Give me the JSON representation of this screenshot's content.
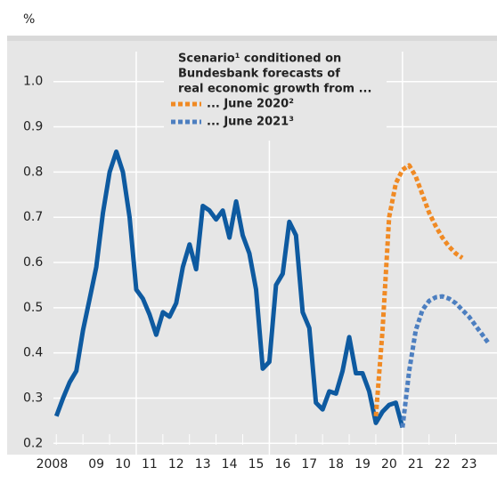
{
  "chart_data": {
    "type": "line",
    "unit_label": "%",
    "legend_title": [
      "Scenario¹ conditioned on",
      "Bundesbank forecasts of",
      "real economic growth from ..."
    ],
    "xlim": [
      2006.15,
      2024.55
    ],
    "ylim": [
      0.175,
      1.09
    ],
    "yticks": [
      0.2,
      0.3,
      0.4,
      0.5,
      0.6,
      0.7,
      0.8,
      0.9,
      {
        "value": 1.0,
        "label": "1.0"
      }
    ],
    "xticks": [
      {
        "value": 2008.5,
        "label": "2008"
      },
      {
        "value": 2009.5,
        "label": "09"
      },
      {
        "value": 2010.5,
        "label": "10"
      },
      {
        "value": 2011.5,
        "label": "11"
      },
      {
        "value": 2012.5,
        "label": "12"
      },
      {
        "value": 2013.5,
        "label": "13"
      },
      {
        "value": 2014.5,
        "label": "14"
      },
      {
        "value": 2015.5,
        "label": "15"
      },
      {
        "value": 2016.5,
        "label": "16"
      },
      {
        "value": 2017.5,
        "label": "17"
      },
      {
        "value": 2018.5,
        "label": "18"
      },
      {
        "value": 2019.5,
        "label": "19"
      },
      {
        "value": 2020.5,
        "label": "20"
      },
      {
        "value": 2021.5,
        "label": "21"
      },
      {
        "value": 2022.5,
        "label": "22"
      },
      {
        "value": 2023.5,
        "label": "23"
      }
    ],
    "xgrid": [
      2011,
      2016,
      2021
    ],
    "grid": true,
    "series": [
      {
        "color": "#0e5aa0",
        "dashed": false,
        "x": [
          2008,
          2008.25,
          2008.5,
          2008.75,
          2009,
          2009.25,
          2009.5,
          2009.75,
          2010,
          2010.25,
          2010.5,
          2010.75,
          2011,
          2011.25,
          2011.5,
          2011.75,
          2012,
          2012.25,
          2012.5,
          2012.75,
          2013,
          2013.25,
          2013.5,
          2013.75,
          2014,
          2014.25,
          2014.5,
          2014.75,
          2015,
          2015.25,
          2015.5,
          2015.75,
          2016,
          2016.25,
          2016.5,
          2016.75,
          2017,
          2017.25,
          2017.5,
          2017.75,
          2018,
          2018.25,
          2018.5,
          2018.75,
          2019,
          2019.25,
          2019.5,
          2019.75,
          2020,
          2020.25,
          2020.5,
          2020.75,
          2021
        ],
        "values": [
          0.26,
          0.3,
          0.335,
          0.36,
          0.45,
          0.52,
          0.59,
          0.71,
          0.8,
          0.845,
          0.8,
          0.7,
          0.54,
          0.52,
          0.485,
          0.44,
          0.49,
          0.48,
          0.51,
          0.59,
          0.64,
          0.585,
          0.725,
          0.715,
          0.695,
          0.715,
          0.655,
          0.735,
          0.66,
          0.62,
          0.54,
          0.365,
          0.38,
          0.55,
          0.575,
          0.69,
          0.66,
          0.49,
          0.455,
          0.29,
          0.275,
          0.315,
          0.31,
          0.36,
          0.435,
          0.355,
          0.355,
          0.315,
          0.245,
          0.27,
          0.285,
          0.29,
          0.235
        ]
      },
      {
        "name": "... June 2020²",
        "color": "#f08a24",
        "dashed": true,
        "x": [
          2020,
          2020.25,
          2020.5,
          2020.75,
          2021,
          2021.25,
          2021.5,
          2021.75,
          2022,
          2022.25,
          2022.5,
          2022.75,
          2023,
          2023.25
        ],
        "values": [
          0.26,
          0.45,
          0.7,
          0.775,
          0.805,
          0.815,
          0.79,
          0.75,
          0.71,
          0.68,
          0.655,
          0.635,
          0.62,
          0.61
        ]
      },
      {
        "name": "... June 2021³",
        "color": "#4d7fc0",
        "dashed": true,
        "x": [
          2021,
          2021.25,
          2021.5,
          2021.75,
          2022,
          2022.25,
          2022.5,
          2022.75,
          2023,
          2023.25,
          2023.5,
          2023.75,
          2024,
          2024.25
        ],
        "values": [
          0.235,
          0.36,
          0.45,
          0.495,
          0.515,
          0.523,
          0.525,
          0.52,
          0.51,
          0.495,
          0.48,
          0.46,
          0.44,
          0.42
        ]
      }
    ]
  }
}
